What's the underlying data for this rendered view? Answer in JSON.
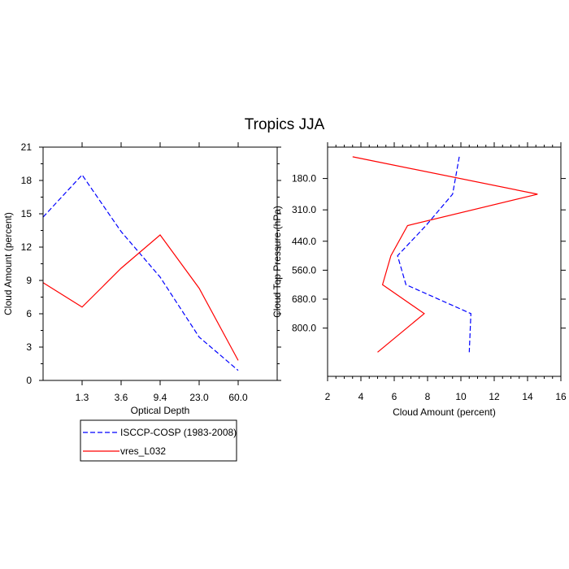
{
  "title": "Tropics JJA",
  "colors": {
    "obs": "#0000ff",
    "model": "#ff0000",
    "axis": "#000000"
  },
  "chart_data": [
    {
      "type": "line",
      "name": "optical-depth-panel",
      "xlabel": "Optical Depth",
      "ylabel": "Cloud Amount (percent)",
      "categories": [
        "1.3",
        "3.6",
        "9.4",
        "23.0",
        "60.0"
      ],
      "x": [
        0,
        1,
        2,
        3,
        4,
        5,
        6
      ],
      "xlim": [
        0,
        6
      ],
      "ylim": [
        0,
        21
      ],
      "yticks": [
        0,
        3,
        6,
        9,
        12,
        15,
        18,
        21
      ],
      "series": [
        {
          "name": "ISCCP-COSP (1983-2008)",
          "values": [
            14.7,
            18.5,
            13.4,
            9.3,
            3.9,
            0.9
          ],
          "x": [
            0,
            1,
            2,
            3,
            4,
            5
          ]
        },
        {
          "name": "vres_L032",
          "values": [
            8.8,
            6.6,
            10.1,
            13.1,
            8.3,
            1.8
          ],
          "x": [
            0,
            1,
            2,
            3,
            4,
            5
          ]
        }
      ]
    },
    {
      "type": "line",
      "name": "pressure-panel",
      "xlabel": "Cloud Amount (percent)",
      "ylabel": "Cloud Top Pressure (hPa)",
      "xlim": [
        2,
        16
      ],
      "xticks": [
        "2",
        "4",
        "6",
        "8",
        "10",
        "12",
        "14",
        "16"
      ],
      "ylim": [
        50,
        1000
      ],
      "ytick_values": [
        180,
        310,
        440,
        560,
        680,
        800
      ],
      "ytick_labels": [
        "180.0",
        "310.0",
        "440.0",
        "560.0",
        "680.0",
        "800.0"
      ],
      "series": [
        {
          "name": "ISCCP-COSP (1983-2008)",
          "amount": [
            9.9,
            9.5,
            7.9,
            6.2,
            6.7,
            10.6,
            10.5
          ],
          "pressure": [
            90,
            245,
            375,
            500,
            620,
            740,
            900
          ]
        },
        {
          "name": "vres_L032",
          "amount": [
            3.5,
            14.6,
            6.8,
            5.8,
            5.3,
            7.8,
            5.0
          ],
          "pressure": [
            90,
            245,
            375,
            500,
            620,
            740,
            900
          ]
        }
      ]
    }
  ],
  "legend": {
    "items": [
      {
        "label": "ISCCP-COSP (1983-2008)",
        "style": "dashed",
        "color": "#0000ff"
      },
      {
        "label": "vres_L032",
        "style": "solid",
        "color": "#ff0000"
      }
    ]
  }
}
